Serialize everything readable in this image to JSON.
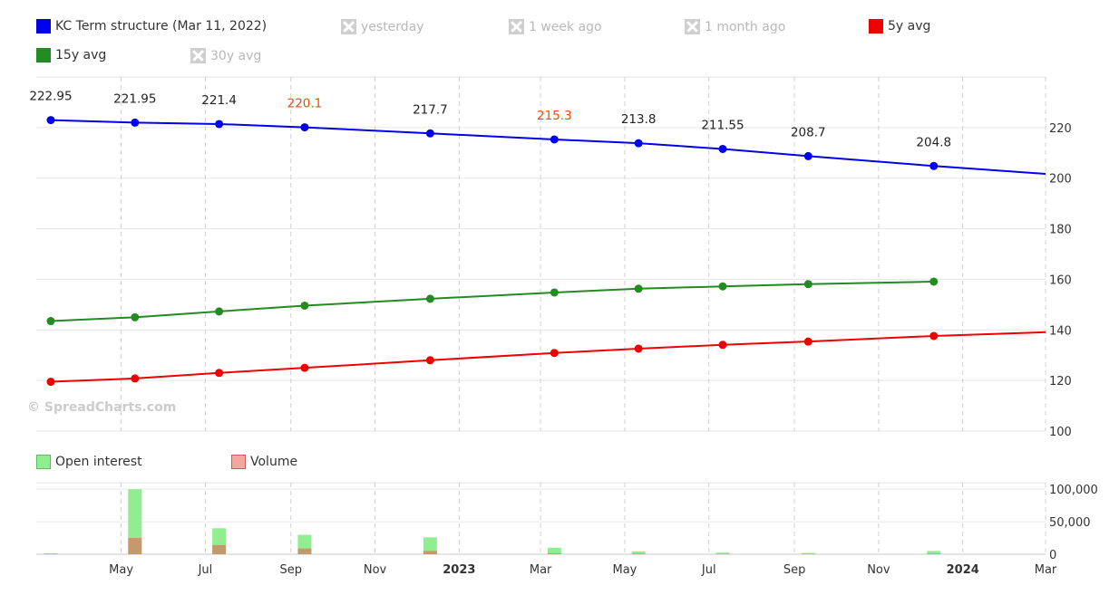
{
  "legend": {
    "items": [
      {
        "label": "KC Term structure (Mar 11, 2022)",
        "color": "#0000ee",
        "enabled": true
      },
      {
        "label": "yesterday",
        "color": "#b8b8b8",
        "enabled": false
      },
      {
        "label": "1 week ago",
        "color": "#b8b8b8",
        "enabled": false
      },
      {
        "label": "1 month ago",
        "color": "#b8b8b8",
        "enabled": false
      },
      {
        "label": "5y avg",
        "color": "#ee0000",
        "enabled": true
      },
      {
        "label": "15y avg",
        "color": "#228b22",
        "enabled": true
      },
      {
        "label": "30y avg",
        "color": "#b8b8b8",
        "enabled": false
      }
    ]
  },
  "volume_legend": {
    "items": [
      {
        "label": "Open interest",
        "color": "#90ee90",
        "border": "#5cb85c"
      },
      {
        "label": "Volume",
        "color": "#f4a6a0",
        "border": "#cd5c5c"
      }
    ]
  },
  "watermark": "© SpreadCharts.com",
  "chart_data": [
    {
      "type": "line",
      "x_axis": {
        "range": [
          "2022-03-11",
          "2024-03-01"
        ],
        "tick_labels": [
          {
            "date": "2022-05-01",
            "label": "May",
            "bold": false
          },
          {
            "date": "2022-07-01",
            "label": "Jul",
            "bold": false
          },
          {
            "date": "2022-09-01",
            "label": "Sep",
            "bold": false
          },
          {
            "date": "2022-11-01",
            "label": "Nov",
            "bold": false
          },
          {
            "date": "2023-01-01",
            "label": "2023",
            "bold": true
          },
          {
            "date": "2023-03-01",
            "label": "Mar",
            "bold": false
          },
          {
            "date": "2023-05-01",
            "label": "May",
            "bold": false
          },
          {
            "date": "2023-07-01",
            "label": "Jul",
            "bold": false
          },
          {
            "date": "2023-09-01",
            "label": "Sep",
            "bold": false
          },
          {
            "date": "2023-11-01",
            "label": "Nov",
            "bold": false
          },
          {
            "date": "2024-01-01",
            "label": "2024",
            "bold": true
          },
          {
            "date": "2024-03-01",
            "label": "Mar",
            "bold": false
          }
        ]
      },
      "y_axis": {
        "range": [
          100,
          240
        ],
        "ticks": [
          100,
          120,
          140,
          160,
          180,
          200,
          220
        ],
        "position": "right"
      },
      "grid": true,
      "series": [
        {
          "name": "KC Term structure (Mar 11, 2022)",
          "color": "#0000ee",
          "x": [
            "2022-03-11",
            "2022-05-11",
            "2022-07-11",
            "2022-09-11",
            "2022-12-11",
            "2023-03-11",
            "2023-05-11",
            "2023-07-11",
            "2023-09-11",
            "2023-12-11"
          ],
          "y": [
            222.95,
            221.95,
            221.4,
            220.1,
            217.7,
            215.3,
            213.8,
            211.55,
            208.7,
            204.8
          ],
          "data_labels": [
            "222.95",
            "221.95",
            "221.4",
            "220.1",
            "217.7",
            "215.3",
            "213.8",
            "211.55",
            "208.7",
            "204.8"
          ],
          "highlighted_labels": [
            "220.1",
            "215.3"
          ],
          "highlight_color": "#ff4500",
          "extends_to": {
            "x": "2024-03-01",
            "y": 201.7
          }
        },
        {
          "name": "15y avg",
          "color": "#228b22",
          "x": [
            "2022-03-11",
            "2022-05-11",
            "2022-07-11",
            "2022-09-11",
            "2022-12-11",
            "2023-03-11",
            "2023-05-11",
            "2023-07-11",
            "2023-09-11",
            "2023-12-11"
          ],
          "y": [
            143.5,
            145.0,
            147.3,
            149.6,
            152.3,
            154.8,
            156.3,
            157.2,
            158.1,
            159.1
          ]
        },
        {
          "name": "5y avg",
          "color": "#ee0000",
          "x": [
            "2022-03-11",
            "2022-05-11",
            "2022-07-11",
            "2022-09-11",
            "2022-12-11",
            "2023-03-11",
            "2023-05-11",
            "2023-07-11",
            "2023-09-11",
            "2023-12-11"
          ],
          "y": [
            119.5,
            120.8,
            123.0,
            125.0,
            128.0,
            130.9,
            132.6,
            134.1,
            135.4,
            137.6
          ],
          "extends_to": {
            "x": "2024-03-01",
            "y": 139.1
          }
        }
      ]
    },
    {
      "type": "bar",
      "y_axis": {
        "range": [
          0,
          110000
        ],
        "ticks": [
          0,
          50000,
          100000
        ],
        "tick_labels": [
          "0",
          "50,000",
          "100,000"
        ],
        "position": "right"
      },
      "series": [
        {
          "name": "Open interest",
          "color": "#90ee90",
          "x": [
            "2022-03-11",
            "2022-05-11",
            "2022-07-11",
            "2022-09-11",
            "2022-12-11",
            "2023-03-11",
            "2023-05-11",
            "2023-07-11",
            "2023-09-11",
            "2023-12-11"
          ],
          "values": [
            1500,
            100000,
            40000,
            30000,
            26000,
            10000,
            4500,
            2500,
            2000,
            5000
          ]
        },
        {
          "name": "Volume",
          "color": "#c49a6c",
          "x": [
            "2022-03-11",
            "2022-05-11",
            "2022-07-11",
            "2022-09-11",
            "2022-12-11",
            "2023-03-11",
            "2023-05-11",
            "2023-07-11",
            "2023-09-11",
            "2023-12-11"
          ],
          "values": [
            500,
            25000,
            14000,
            9000,
            5000,
            1500,
            1000,
            500,
            500,
            1000
          ]
        }
      ]
    }
  ]
}
